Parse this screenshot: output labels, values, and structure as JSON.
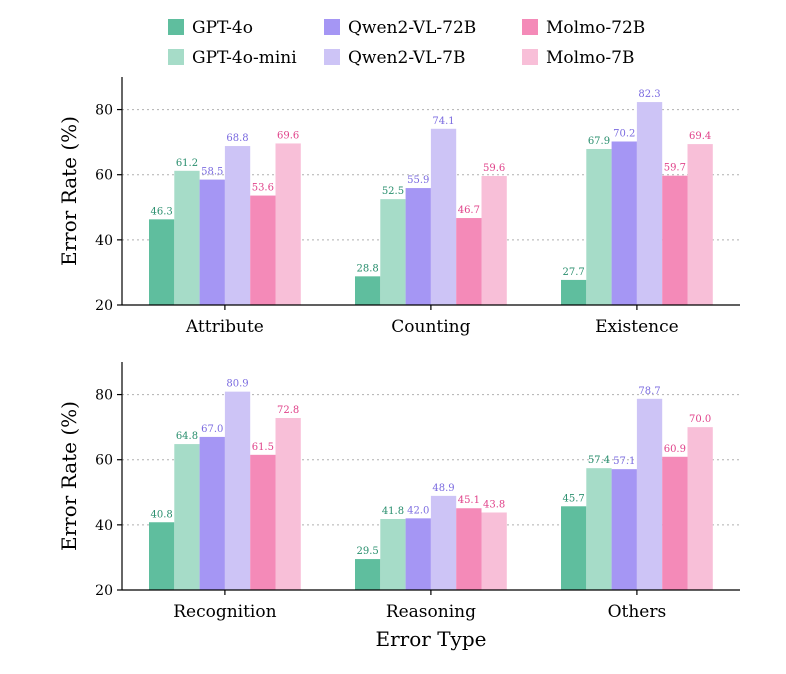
{
  "chart_data": {
    "type": "bar",
    "legend": {
      "position": "top",
      "items": [
        {
          "name": "GPT-4o",
          "color": "#5fbe9e"
        },
        {
          "name": "GPT-4o-mini",
          "color": "#a6dcc8"
        },
        {
          "name": "Qwen2-VL-72B",
          "color": "#a596f4"
        },
        {
          "name": "Qwen2-VL-7B",
          "color": "#cdc4f6"
        },
        {
          "name": "Molmo-72B",
          "color": "#f48ab8"
        },
        {
          "name": "Molmo-7B",
          "color": "#f8bfd8"
        }
      ]
    },
    "label_colors": [
      "#2a8f6e",
      "#2a8f6e",
      "#7b6be0",
      "#7b6be0",
      "#e0428a",
      "#e0428a"
    ],
    "xlabel": "Error Type",
    "panels": [
      {
        "ylabel": "Error Rate (%)",
        "ylim": [
          20,
          90
        ],
        "yticks": [
          20,
          40,
          60,
          80
        ],
        "grid": true,
        "categories": [
          "Attribute",
          "Counting",
          "Existence"
        ],
        "series": [
          {
            "name": "GPT-4o",
            "values": [
              46.3,
              28.8,
              27.7
            ],
            "labels": [
              "46.3",
              "28.8",
              "27.7"
            ]
          },
          {
            "name": "GPT-4o-mini",
            "values": [
              61.2,
              52.5,
              67.9
            ],
            "labels": [
              "61.2",
              "52.5",
              "67.9"
            ]
          },
          {
            "name": "Qwen2-VL-72B",
            "values": [
              58.5,
              55.9,
              70.2
            ],
            "labels": [
              "58.5",
              "55.9",
              "70.2"
            ]
          },
          {
            "name": "Qwen2-VL-7B",
            "values": [
              68.8,
              74.1,
              82.3
            ],
            "labels": [
              "68.8",
              "74.1",
              "82.3"
            ]
          },
          {
            "name": "Molmo-72B",
            "values": [
              53.6,
              46.7,
              59.7
            ],
            "labels": [
              "53.6",
              "46.7",
              "59.7"
            ]
          },
          {
            "name": "Molmo-7B",
            "values": [
              69.6,
              59.6,
              69.4
            ],
            "labels": [
              "69.6",
              "59.6",
              "69.4"
            ]
          }
        ]
      },
      {
        "ylabel": "Error Rate (%)",
        "ylim": [
          20,
          90
        ],
        "yticks": [
          20,
          40,
          60,
          80
        ],
        "grid": true,
        "categories": [
          "Recognition",
          "Reasoning",
          "Others"
        ],
        "series": [
          {
            "name": "GPT-4o",
            "values": [
              40.8,
              29.5,
              45.7
            ],
            "labels": [
              "40.8",
              "29.5",
              "45.7"
            ]
          },
          {
            "name": "GPT-4o-mini",
            "values": [
              64.8,
              41.8,
              57.4
            ],
            "labels": [
              "64.8",
              "41.8",
              "57.4"
            ]
          },
          {
            "name": "Qwen2-VL-72B",
            "values": [
              67.0,
              42.0,
              57.1
            ],
            "labels": [
              "67.0",
              "42.0",
              "57.1"
            ]
          },
          {
            "name": "Qwen2-VL-7B",
            "values": [
              80.9,
              48.9,
              78.7
            ],
            "labels": [
              "80.9",
              "48.9",
              "78.7"
            ]
          },
          {
            "name": "Molmo-72B",
            "values": [
              61.5,
              45.1,
              60.9
            ],
            "labels": [
              "61.5",
              "45.1",
              "60.9"
            ]
          },
          {
            "name": "Molmo-7B",
            "values": [
              72.8,
              43.8,
              70.0
            ],
            "labels": [
              "72.8",
              "43.8",
              "70.0"
            ]
          }
        ]
      }
    ]
  }
}
